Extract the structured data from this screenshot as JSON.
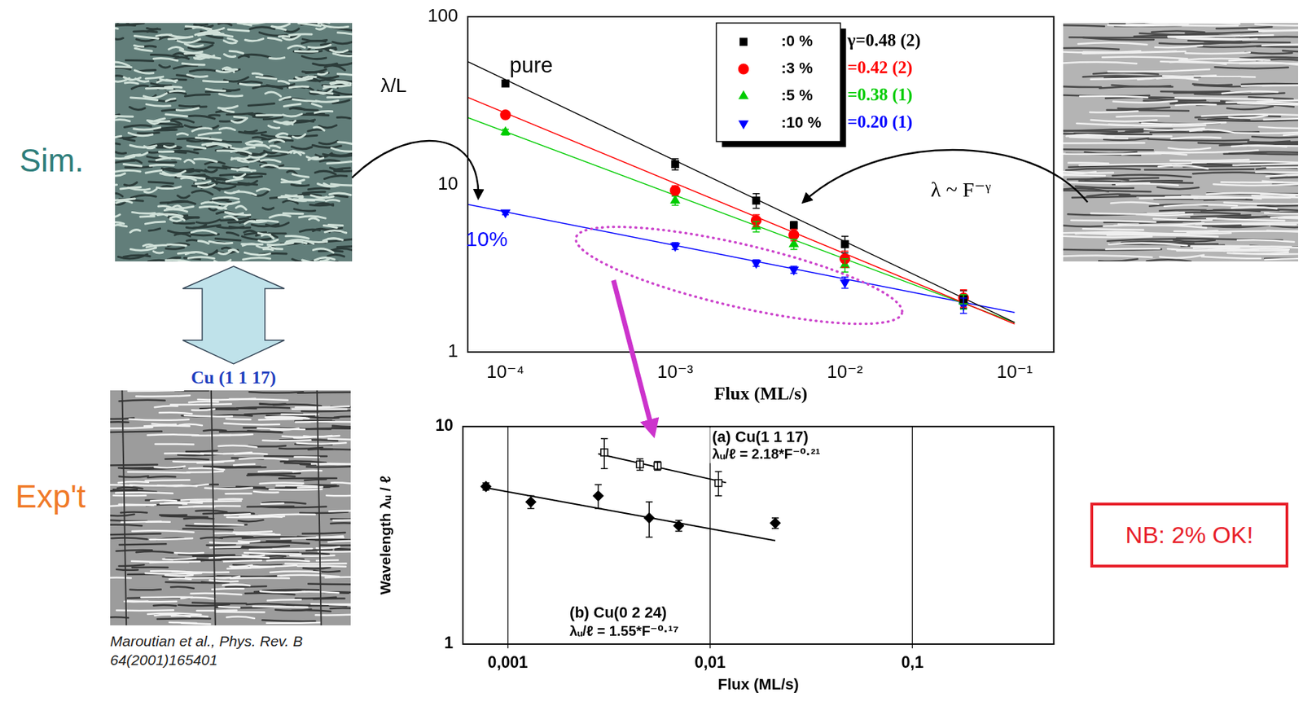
{
  "chart_data": [
    {
      "type": "scatter",
      "log": true,
      "x_label": "Flux (ML/s)",
      "y_label": "λ/L",
      "xlim": [
        6e-05,
        0.17
      ],
      "xticks": [
        {
          "value": 0.0001,
          "label": "10⁻⁴"
        },
        {
          "value": 0.001,
          "label": "10⁻³"
        },
        {
          "value": 0.01,
          "label": "10⁻²"
        },
        {
          "value": 0.1,
          "label": "10⁻¹"
        }
      ],
      "ylim": [
        1,
        100
      ],
      "yticks": [
        1,
        10,
        100
      ],
      "grid": false,
      "legend": "upper right",
      "annotations": [
        "λ ~ F⁻ᵞ"
      ],
      "x": [
        0.0001,
        0.001,
        0.003,
        0.005,
        0.01,
        0.05
      ],
      "series": [
        {
          "name": ":0 %",
          "color": "#000000",
          "marker": "square",
          "label": "pure",
          "fit_label": "γ=0.48 (2)",
          "values": [
            40,
            13.2,
            8.0,
            5.7,
            4.4,
            2.07
          ],
          "errors": [
            1.5,
            1.0,
            0.8,
            0.3,
            0.5,
            0.25
          ],
          "fit_x": [
            6e-05,
            0.1
          ],
          "fit_values": [
            54,
            1.5
          ]
        },
        {
          "name": ":3 %",
          "color": "#ff0000",
          "marker": "circle",
          "fit_label": "=0.42 (2)",
          "values": [
            26,
            9.2,
            6.1,
            5.0,
            3.6,
            2.1
          ],
          "errors": [
            1.2,
            0.6,
            0.5,
            0.4,
            0.4,
            0.25
          ],
          "fit_x": [
            6e-05,
            0.1
          ],
          "fit_values": [
            33,
            1.47
          ]
        },
        {
          "name": ":5 %",
          "color": "#00cc00",
          "marker": "triangle",
          "fit_label": "=0.38 (1)",
          "values": [
            20.5,
            8.0,
            5.6,
            4.4,
            3.3,
            2.0
          ],
          "errors": [
            0.8,
            0.5,
            0.4,
            0.3,
            0.3,
            0.2
          ],
          "fit_x": [
            6e-05,
            0.1
          ],
          "fit_values": [
            25,
            1.5
          ]
        },
        {
          "name": ":10 %",
          "color": "#0000ff",
          "marker": "triangle_down",
          "label": "10%",
          "fit_label": "=0.20 (1)",
          "values": [
            6.8,
            4.3,
            3.4,
            3.1,
            2.6,
            1.9
          ],
          "errors": [
            0.2,
            0.2,
            0.15,
            0.15,
            0.2,
            0.2
          ],
          "fit_x": [
            6e-05,
            0.1
          ],
          "fit_values": [
            7.6,
            1.72
          ]
        }
      ]
    },
    {
      "type": "scatter",
      "log": true,
      "x_label": "Flux (ML/s)",
      "y_label": "Wavelength λᵤ / ℓ",
      "xlim": [
        0.0006,
        0.5
      ],
      "xticks": [
        {
          "value": 0.001,
          "label": "0,001"
        },
        {
          "value": 0.01,
          "label": "0,01"
        },
        {
          "value": 0.1,
          "label": "0,1"
        }
      ],
      "ylim": [
        1,
        10
      ],
      "yticks": [
        1,
        10
      ],
      "grid": "x",
      "series": [
        {
          "name": "(a) Cu(1 1 17)",
          "color": "#000000",
          "marker": "square_open",
          "fit_label": "λᵤ/ℓ = 2.18*F⁻⁰·²¹",
          "x": [
            0.003,
            0.0045,
            0.0055,
            0.011
          ],
          "values": [
            7.6,
            6.7,
            6.6,
            5.5
          ],
          "errors": [
            1.2,
            0.4,
            0.3,
            0.7
          ],
          "fit_x": [
            0.0028,
            0.012
          ],
          "fit_values": [
            7.49,
            5.52
          ]
        },
        {
          "name": "(b) Cu(0 2 24)",
          "color": "#000000",
          "marker": "diamond",
          "fit_label": "λᵤ/ℓ = 1.55*F⁻⁰·¹⁷",
          "x": [
            0.00078,
            0.0013,
            0.0028,
            0.005,
            0.007,
            0.021
          ],
          "values": [
            5.3,
            4.5,
            4.8,
            3.8,
            3.5,
            3.6
          ],
          "errors": [
            0.2,
            0.3,
            0.6,
            0.7,
            0.2,
            0.2
          ],
          "fit_x": [
            0.00078,
            0.021
          ],
          "fit_values": [
            5.23,
            2.99
          ]
        }
      ]
    }
  ],
  "slide": {
    "row_labels": [
      "Sim.",
      "Exp't"
    ],
    "surface_label": "Cu (1 1 17)",
    "citation": "Maroutian et al., Phys. Rev. B 64(2001)165401",
    "note": "NB: 2% OK!"
  }
}
